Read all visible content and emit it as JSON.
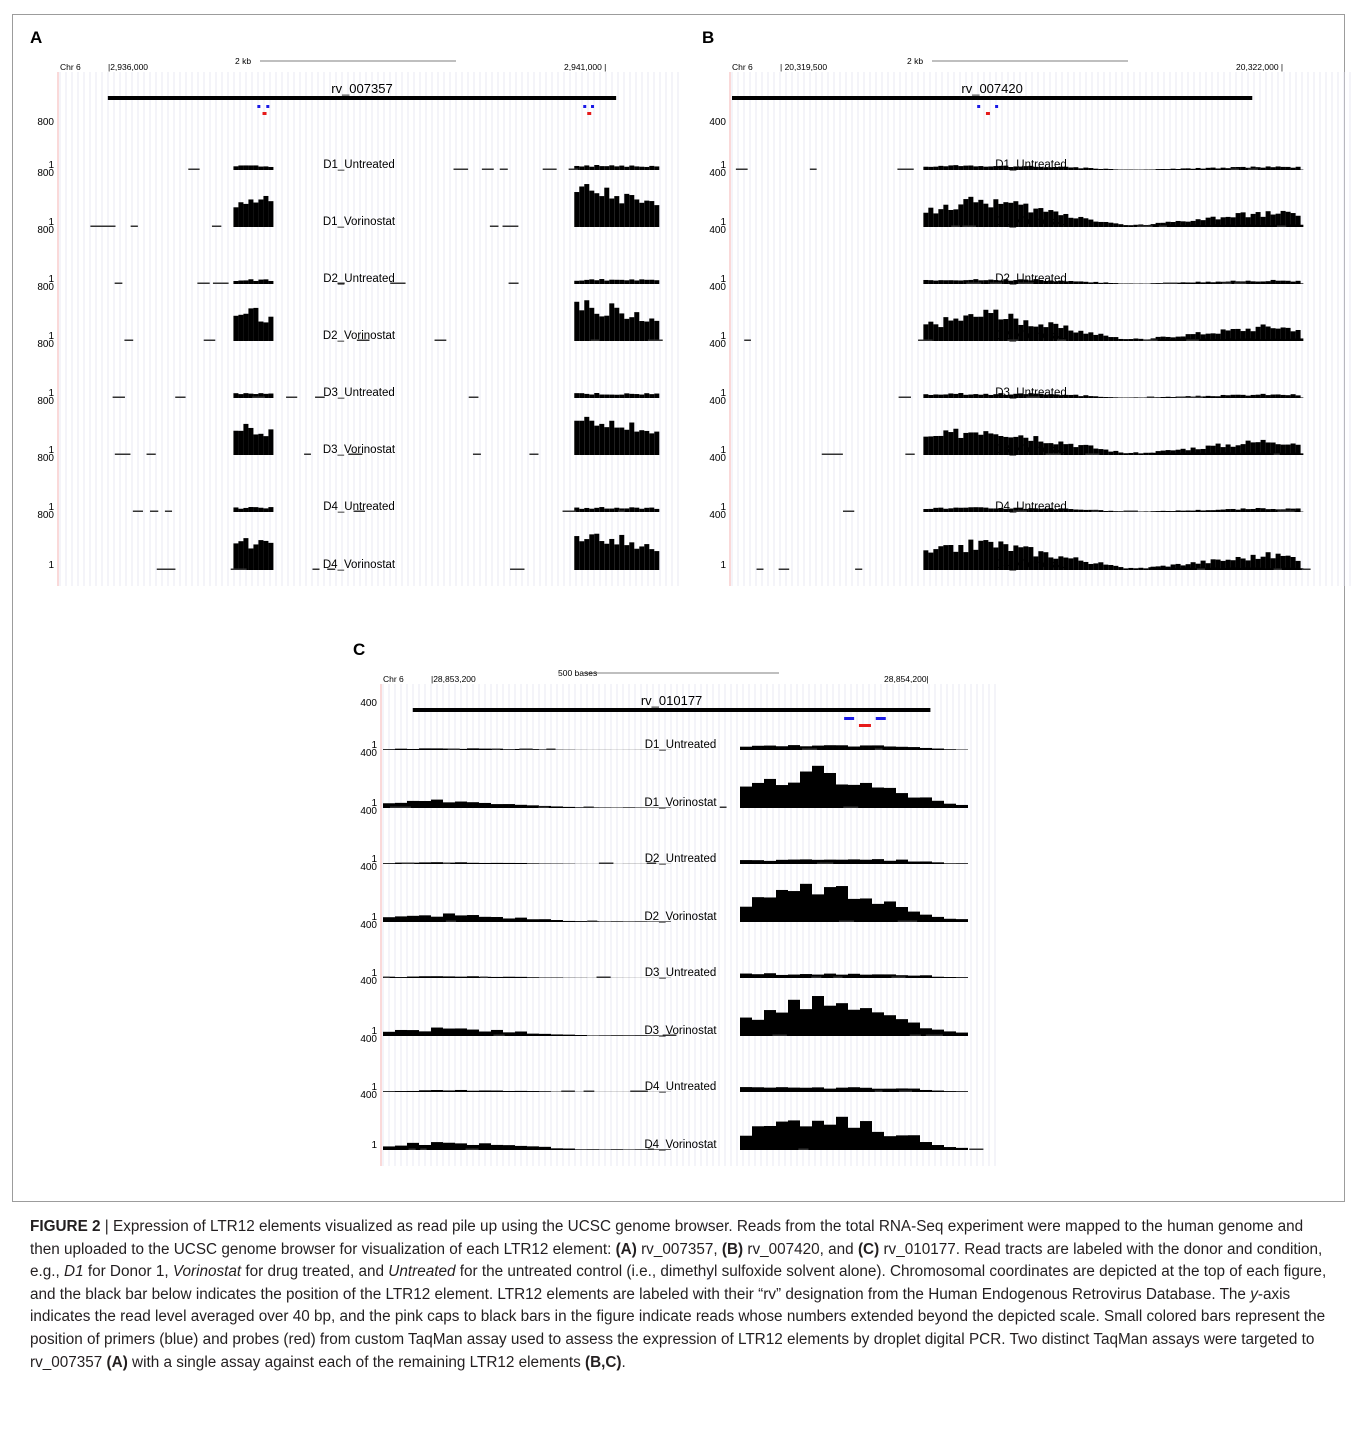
{
  "panels": [
    {
      "letter": "A",
      "chrom": "Chr 6",
      "coord_left": "|2,936,000",
      "coord_right": "2,941,000 |",
      "scale_label": "2 kb",
      "element_name": "rv_007357",
      "axis_top": "800",
      "axis_one": "1",
      "primers": [
        [
          0.33,
          0.35
        ],
        [
          0.875,
          0.893
        ]
      ],
      "probes": [
        0.342,
        0.885
      ],
      "tracks": [
        "D1_Untreated",
        "D1_Vorinostat",
        "D2_Untreated",
        "D2_Vorinostat",
        "D3_Untreated",
        "D3_Vorinostat",
        "D4_Untreated",
        "D4_Vorinostat"
      ]
    },
    {
      "letter": "B",
      "chrom": "Chr 6",
      "coord_left": "| 20,319,500",
      "coord_right": "20,322,000 |",
      "scale_label": "2 kb",
      "element_name": "rv_007420",
      "axis_top": "400",
      "axis_one": "1",
      "primers": [
        [
          0.41,
          0.445
        ]
      ],
      "probes": [
        0.428
      ],
      "tracks": [
        "D1_Untreated",
        "D1_Vorinostat",
        "D2_Untreated",
        "D2_Vorinostat",
        "D3_Untreated",
        "D3_Vorinostat",
        "D4_Untreated",
        "D4_Vorinostat"
      ]
    },
    {
      "letter": "C",
      "chrom": "Chr 6",
      "coord_left": "|28,853,200",
      "coord_right": "28,854,200|",
      "scale_label": "500 bases",
      "element_name": "rv_010177",
      "axis_top": "400",
      "axis_one": "1",
      "primers": [
        [
          0.775,
          0.845
        ]
      ],
      "probes": [
        0.81
      ],
      "tracks": [
        "D1_Untreated",
        "D1_Vorinostat",
        "D2_Untreated",
        "D2_Vorinostat",
        "D3_Untreated",
        "D3_Vorinostat",
        "D4_Untreated",
        "D4_Vorinostat"
      ]
    }
  ],
  "caption": {
    "label": "FIGURE 2",
    "sep": " | ",
    "t1": "Expression of LTR12 elements visualized as read pile up using the UCSC genome browser. Reads from the total RNA-Seq experiment were mapped to the human genome and then uploaded to the UCSC genome browser for visualization of each LTR12 element: ",
    "ref_a": "(A)",
    "t2": " rv_007357, ",
    "ref_b": "(B)",
    "t3": " rv_007420, and ",
    "ref_c": "(C)",
    "t4": " rv_010177. Read tracts are labeled with the donor and condition, e.g., ",
    "i1": "D1",
    "t5": " for Donor 1, ",
    "i2": "Vorinostat",
    "t6": " for drug treated, and ",
    "i3": "Untreated",
    "t7": " for the untreated control (i.e., dimethyl sulfoxide solvent alone). Chromosomal coordinates are depicted at the top of each figure, and the black bar below indicates the position of the LTR12 element. LTR12 elements are labeled with their “rv” designation from the Human Endogenous Retrovirus Database. The ",
    "i4": "y",
    "t8": "-axis indicates the read level averaged over 40 bp, and the pink caps to black bars in the figure indicate reads whose numbers extended beyond the depicted scale. Small colored bars represent the position of primers (blue) and probes (red) from custom TaqMan assay used to assess the expression of LTR12 elements by droplet digital PCR. Two distinct TaqMan assays were targeted to rv_007357 ",
    "ref_a2": "(A)",
    "t9": " with a single assay against each of the remaining LTR12 elements ",
    "ref_bc": "(B,C)",
    "t10": "."
  }
}
